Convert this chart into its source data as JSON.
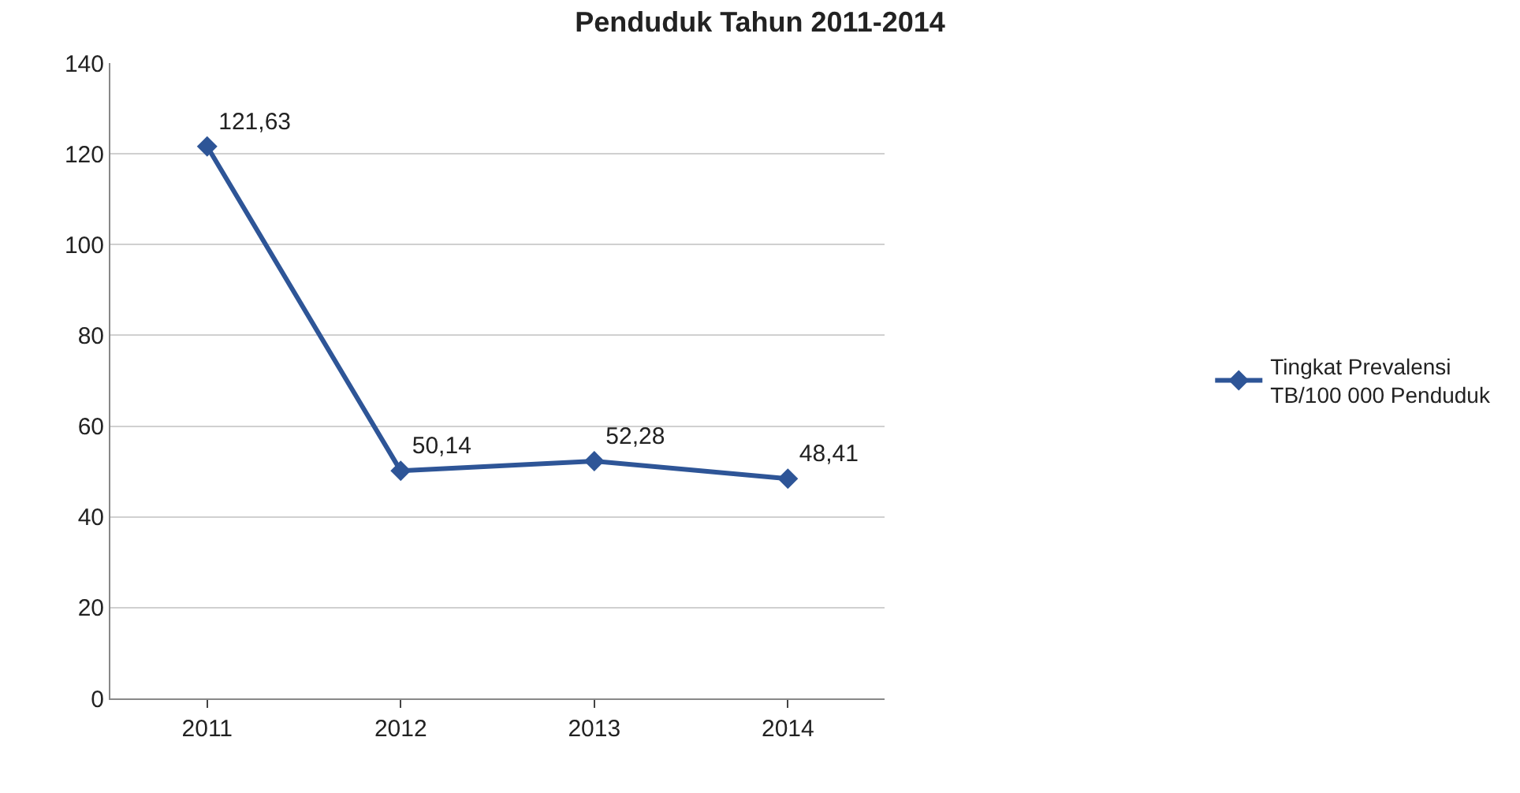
{
  "chart_data": {
    "type": "line",
    "title": "Penduduk Tahun 2011-2014",
    "categories": [
      "2011",
      "2012",
      "2013",
      "2014"
    ],
    "series": [
      {
        "name": "Tingkat Prevalensi TB/100 000 Penduduk",
        "color": "#2e5597",
        "values": [
          121.63,
          50.14,
          52.28,
          48.41
        ],
        "value_labels": [
          "121,63",
          "50,14",
          "52,28",
          "48,41"
        ]
      }
    ],
    "ylim": [
      0,
      140
    ],
    "yticks": [
      0,
      20,
      40,
      60,
      80,
      100,
      120,
      140
    ],
    "grid": "y",
    "legend": "right",
    "marker": "diamond",
    "line_style": "solid"
  }
}
